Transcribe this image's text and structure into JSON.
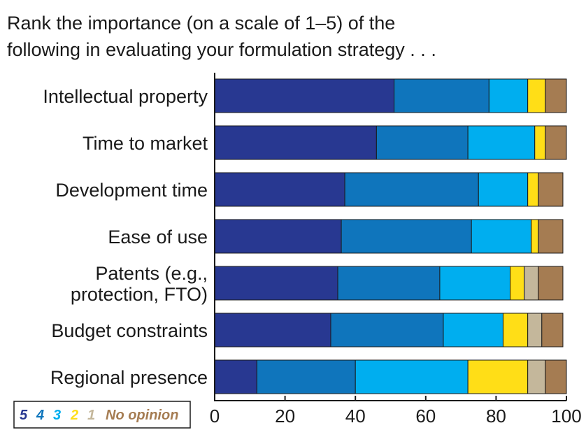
{
  "chart_data": {
    "type": "bar",
    "orientation": "horizontal",
    "stacked": true,
    "title_lines": [
      "Rank the importance (on a scale of 1–5) of the",
      "following in evaluating your formulation strategy . . ."
    ],
    "categories": [
      "Intellectual property",
      "Time to market",
      "Development time",
      "Ease of use",
      "Patents (e.g., protection, FTO)",
      "Budget constraints",
      "Regional presence"
    ],
    "category_lines": [
      [
        "Intellectual property"
      ],
      [
        "Time to market"
      ],
      [
        "Development time"
      ],
      [
        "Ease of use"
      ],
      [
        "Patents (e.g.,",
        "protection, FTO)"
      ],
      [
        "Budget constraints"
      ],
      [
        "Regional presence"
      ]
    ],
    "series": [
      {
        "name": "5",
        "color": "#283891",
        "values": [
          51,
          46,
          37,
          36,
          35,
          33,
          12
        ]
      },
      {
        "name": "4",
        "color": "#0f75bc",
        "values": [
          27,
          26,
          38,
          37,
          29,
          32,
          28
        ]
      },
      {
        "name": "3",
        "color": "#00aeef",
        "values": [
          11,
          19,
          14,
          17,
          20,
          17,
          32
        ]
      },
      {
        "name": "2",
        "color": "#ffde17",
        "values": [
          5,
          3,
          3,
          2,
          4,
          7,
          17
        ]
      },
      {
        "name": "1",
        "color": "#c4b79b",
        "values": [
          0,
          0,
          0,
          0,
          4,
          4,
          5
        ]
      },
      {
        "name": "No opinion",
        "color": "#a57c52",
        "values": [
          6,
          6,
          7,
          7,
          7,
          6,
          6
        ]
      }
    ],
    "xlim": [
      0,
      100
    ],
    "xticks": [
      0,
      20,
      40,
      60,
      80,
      100
    ],
    "xtick_labels": [
      "0",
      "20",
      "40",
      "60",
      "80",
      "100"
    ],
    "xlabel": "",
    "ylabel": "",
    "grid": false,
    "legend_position": "bottom-left"
  }
}
